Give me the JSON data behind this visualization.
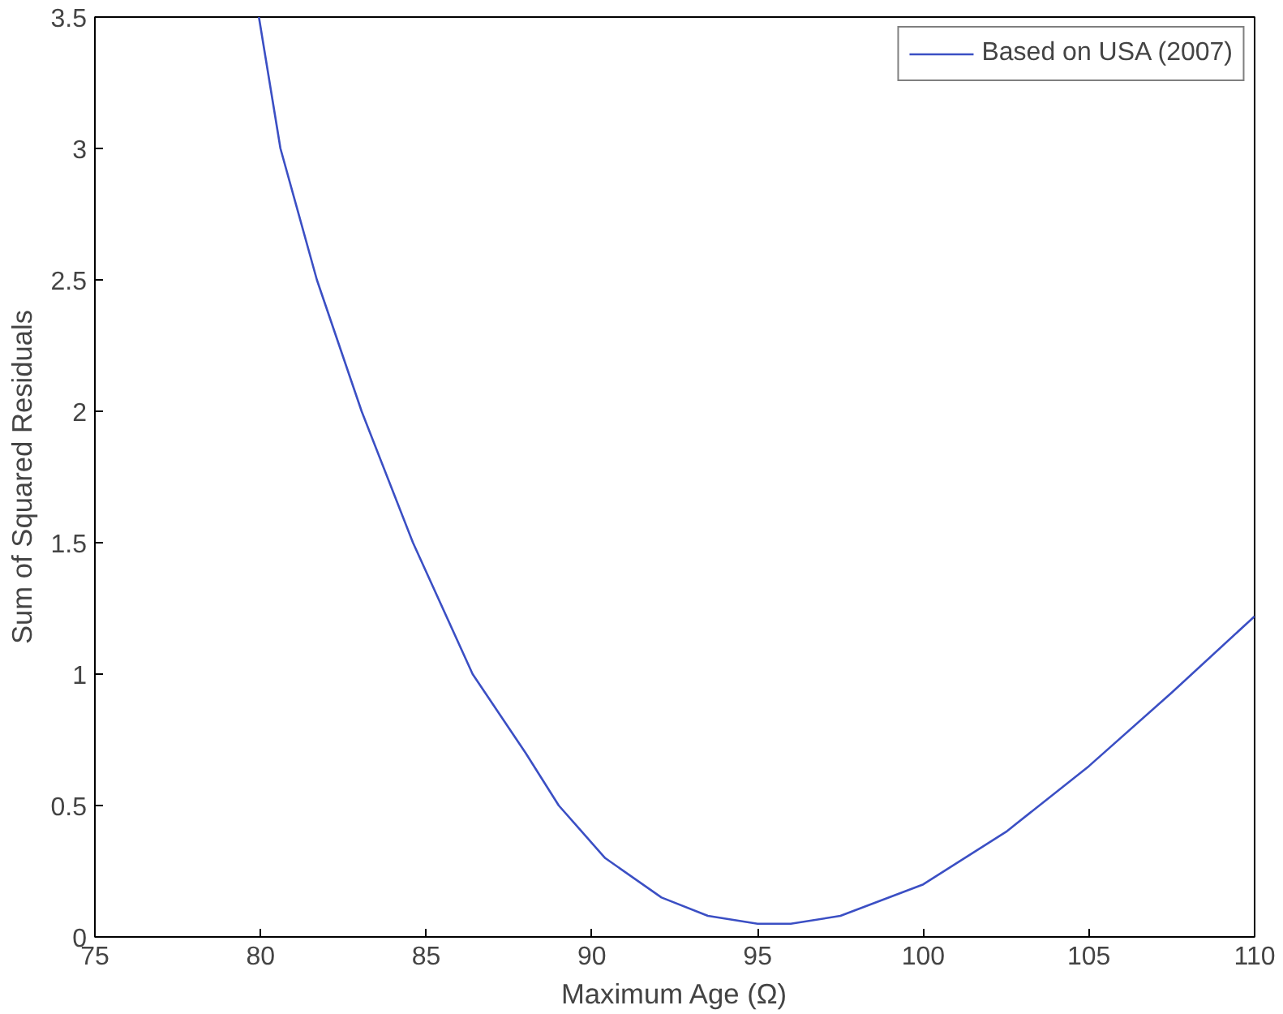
{
  "chart_data": {
    "type": "line",
    "xlabel": "Maximum Age (Ω)",
    "ylabel": "Sum of Squared Residuals",
    "xlim": [
      75,
      110
    ],
    "ylim": [
      0,
      3.5
    ],
    "xticks": [
      75,
      80,
      85,
      90,
      95,
      100,
      105,
      110
    ],
    "yticks": [
      0,
      0.5,
      1,
      1.5,
      2,
      2.5,
      3,
      3.5
    ],
    "grid": false,
    "legend": "top right",
    "marker": "none",
    "line_style": "solid",
    "series": [
      {
        "name": "Based on USA (2007)",
        "color": "#3b4fc4",
        "x": [
          79.95,
          80.6,
          81.7,
          83.05,
          84.6,
          86.4,
          88,
          89,
          90.4,
          92.1,
          93.5,
          95,
          96,
          97.5,
          100,
          102.5,
          105,
          107.5,
          110
        ],
        "values": [
          3.5,
          3,
          2.5,
          2,
          1.5,
          1,
          0.7,
          0.5,
          0.3,
          0.15,
          0.08,
          0.05,
          0.05,
          0.08,
          0.2,
          0.4,
          0.65,
          0.93,
          1.22
        ]
      }
    ]
  }
}
